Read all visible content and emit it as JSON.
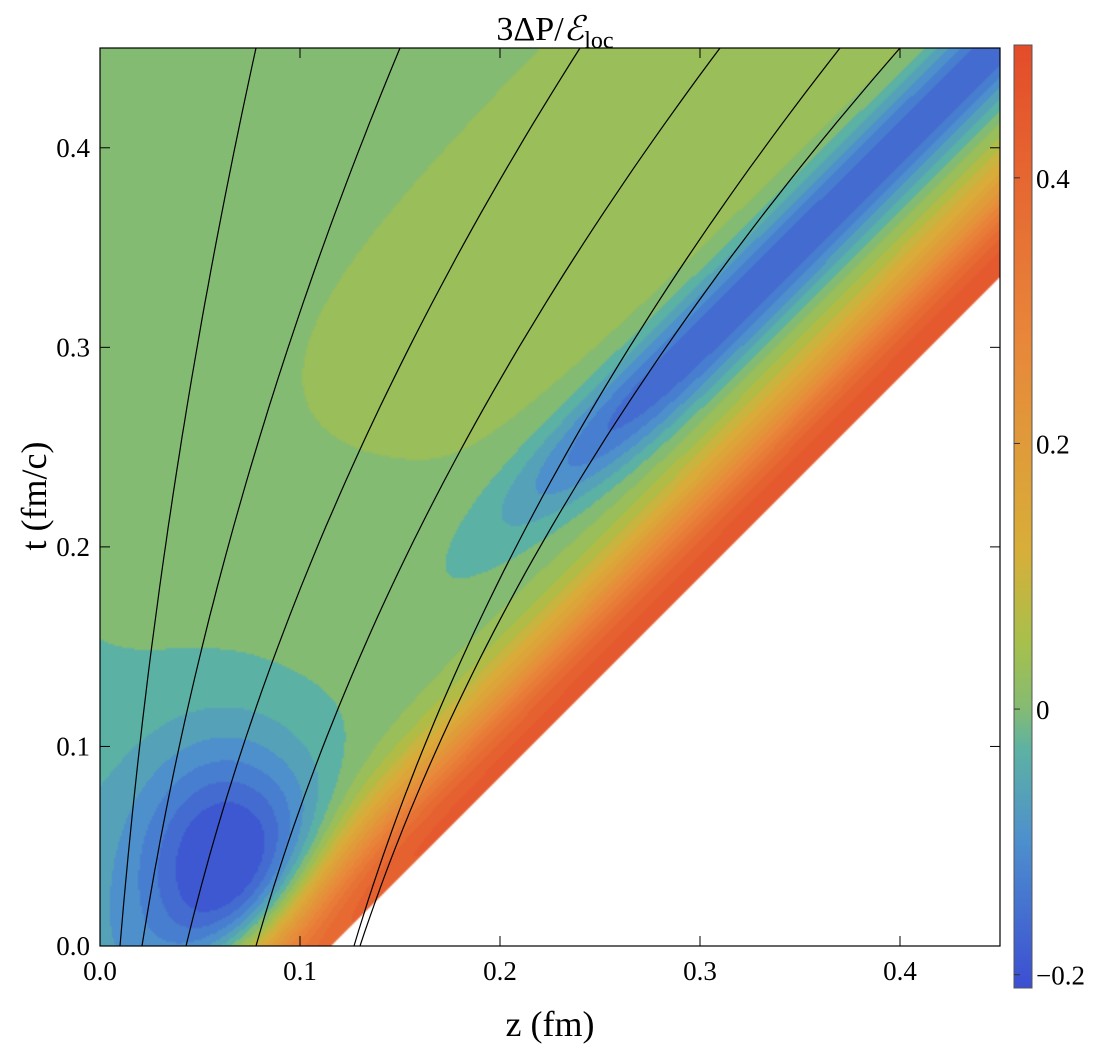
{
  "chart_data": {
    "type": "heatmap",
    "subtype": "filled contour plot with overlaid flow lines",
    "title": {
      "prefix": "3ΔP/",
      "symbol": "ℰ",
      "subscript": "loc"
    },
    "xlabel": "z (fm)",
    "ylabel": "t (fm/c)",
    "xlim": [
      0,
      0.45
    ],
    "ylim": [
      0,
      0.45
    ],
    "x_ticks": [
      {
        "value": 0.0,
        "label": "0.0"
      },
      {
        "value": 0.1,
        "label": "0.1"
      },
      {
        "value": 0.2,
        "label": "0.2"
      },
      {
        "value": 0.3,
        "label": "0.3"
      },
      {
        "value": 0.4,
        "label": "0.4"
      }
    ],
    "y_ticks": [
      {
        "value": 0.0,
        "label": "0.0"
      },
      {
        "value": 0.1,
        "label": "0.1"
      },
      {
        "value": 0.2,
        "label": "0.2"
      },
      {
        "value": 0.3,
        "label": "0.3"
      },
      {
        "value": 0.4,
        "label": "0.4"
      }
    ],
    "colorbar": {
      "range": [
        -0.21,
        0.5
      ],
      "ticks": [
        {
          "value": -0.2,
          "label": "−0.2"
        },
        {
          "value": 0,
          "label": "0"
        },
        {
          "value": 0.2,
          "label": "0.2"
        },
        {
          "value": 0.4,
          "label": "0.4"
        }
      ],
      "colors": [
        "#3c4ed2",
        "#4d8fce",
        "#5db2a3",
        "#84bb73",
        "#a7c04b",
        "#d8ae39",
        "#e8863a",
        "#e44c2a"
      ],
      "color_stops": [
        -0.21,
        -0.1,
        -0.03,
        0,
        0.05,
        0.12,
        0.28,
        0.5
      ]
    },
    "domain_boundary": {
      "description": "data defined only where t >= z - 0.115",
      "points": [
        [
          0.115,
          0
        ],
        [
          0.45,
          0.335
        ]
      ]
    },
    "features": [
      {
        "name": "negative minimum",
        "z": 0.07,
        "t": 0.04,
        "value": -0.2
      },
      {
        "name": "positive ridge",
        "z_at_t0": 0.13,
        "slope": 1,
        "value": 0.45
      },
      {
        "name": "negative valley",
        "z": 0.38,
        "t": 0.42,
        "value": -0.17
      },
      {
        "name": "left plateau",
        "z": 0.05,
        "t": 0.35,
        "value": 0.0
      }
    ],
    "flow_lines": [
      {
        "z0": 0.01,
        "z_at_top": 0.078
      },
      {
        "z0": 0.021,
        "z_at_top": 0.15
      },
      {
        "z0": 0.043,
        "z_at_top": 0.24
      },
      {
        "z0": 0.078,
        "z_at_top": 0.31
      },
      {
        "z0": 0.127,
        "z_at_top": 0.37
      },
      {
        "z0": 0.13,
        "z_at_top": 0.4
      }
    ]
  }
}
